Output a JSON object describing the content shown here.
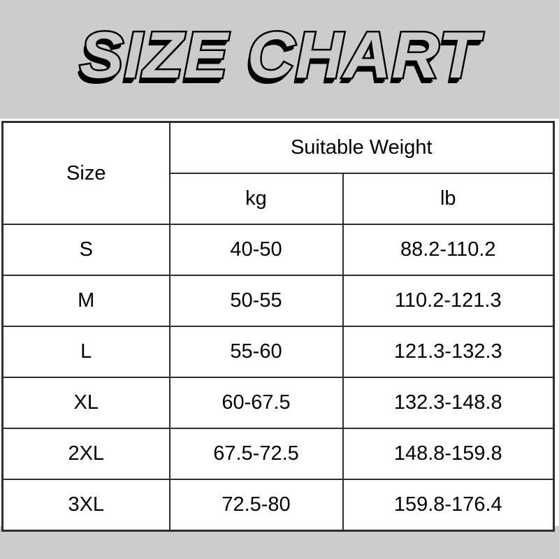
{
  "colors": {
    "background": "#cccccc",
    "panel": "#ffffff",
    "border": "#2e2e2e",
    "text": "#000000"
  },
  "chart_data": {
    "type": "table",
    "title": "SIZE CHART",
    "header": {
      "size": "Size",
      "group": "Suitable Weight",
      "kg": "kg",
      "lb": "lb"
    },
    "columns": [
      "Size",
      "Suitable Weight kg",
      "Suitable Weight lb"
    ],
    "rows": [
      {
        "size": "S",
        "kg": "40-50",
        "lb": "88.2-110.2"
      },
      {
        "size": "M",
        "kg": "50-55",
        "lb": "110.2-121.3"
      },
      {
        "size": "L",
        "kg": "55-60",
        "lb": "121.3-132.3"
      },
      {
        "size": "XL",
        "kg": "60-67.5",
        "lb": "132.3-148.8"
      },
      {
        "size": "2XL",
        "kg": "67.5-72.5",
        "lb": "148.8-159.8"
      },
      {
        "size": "3XL",
        "kg": "72.5-80",
        "lb": "159.8-176.4"
      }
    ]
  }
}
